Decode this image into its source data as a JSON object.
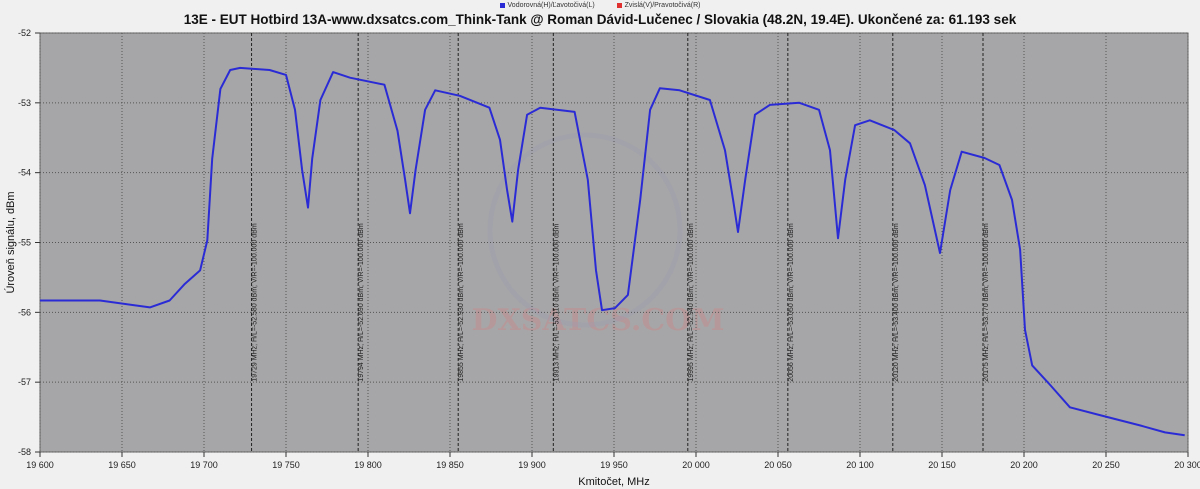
{
  "chart_data": {
    "type": "line",
    "title": "13E - EUT Hotbird 13A-www.dxsatcs.com_Think-Tank @ Roman Dávid-Lučenec / Slovakia (48.2N, 19.4E). Ukončené za: 61.193 sek",
    "xlabel": "Kmitočet, MHz",
    "ylabel": "Úroveň signálu, dBm",
    "xlim": [
      19600,
      20300
    ],
    "ylim": [
      -58,
      -52
    ],
    "x_ticks": [
      19600,
      19650,
      19700,
      19750,
      19800,
      19850,
      19900,
      19950,
      20000,
      20050,
      20100,
      20150,
      20200,
      20250,
      20300
    ],
    "x_tick_labels": [
      "19 600",
      "19 650",
      "19 700",
      "19 750",
      "19 800",
      "19 850",
      "19 900",
      "19 950",
      "20 000",
      "20 050",
      "20 100",
      "20 150",
      "20 200",
      "20 250",
      "20 300"
    ],
    "y_ticks": [
      -52,
      -53,
      -54,
      -55,
      -56,
      -57,
      -58
    ],
    "grid": true,
    "background": "#a6a6a8",
    "legend": {
      "placement": "top-center",
      "entries": [
        {
          "name": "Vodorovná(H)/Ľavotočivá(L)",
          "color": "#2b2bd6"
        },
        {
          "name": "Zvislá(V)/Pravotočivá(R)",
          "color": "#e03030"
        }
      ]
    },
    "series": [
      {
        "name": "Vodorovná(H)/Ľavotočivá(L)",
        "color": "#2b2bd6",
        "x": [
          19600,
          19636.6,
          19667,
          19679,
          19688,
          19697.6,
          19702,
          19705,
          19710,
          19716,
          19722,
          19740,
          19750,
          19755.5,
          19759.8,
          19763.4,
          19766,
          19771,
          19778.7,
          19789,
          19810,
          19818,
          19822.6,
          19825.6,
          19829,
          19834.8,
          19841,
          19856,
          19874,
          19880.5,
          19884.8,
          19888,
          19891.5,
          19897,
          19905,
          19926,
          19934,
          19939,
          19942.7,
          19950.6,
          19958.5,
          19966,
          19972,
          19978,
          19990,
          20008.5,
          20017.7,
          20022.6,
          20025.6,
          20030,
          20036,
          20045,
          20063,
          20075,
          20081.7,
          20086.6,
          20091,
          20097,
          20106,
          20121,
          20130.5,
          20139.6,
          20148.8,
          20155,
          20162,
          20176,
          20185,
          20192.7,
          20197.6,
          20200.6,
          20205,
          20216,
          20228,
          20246,
          20271,
          20286,
          20298
        ],
        "y": [
          -55.83,
          -55.83,
          -55.93,
          -55.83,
          -55.6,
          -55.4,
          -54.97,
          -53.8,
          -52.8,
          -52.53,
          -52.5,
          -52.53,
          -52.6,
          -53.1,
          -53.96,
          -54.5,
          -53.8,
          -52.96,
          -52.56,
          -52.64,
          -52.74,
          -53.4,
          -54.1,
          -54.58,
          -53.96,
          -53.1,
          -52.82,
          -52.9,
          -53.07,
          -53.53,
          -54.25,
          -54.7,
          -53.96,
          -53.17,
          -53.07,
          -53.13,
          -54.1,
          -55.4,
          -55.97,
          -55.94,
          -55.75,
          -54.39,
          -53.1,
          -52.79,
          -52.82,
          -52.96,
          -53.68,
          -54.39,
          -54.85,
          -54.1,
          -53.17,
          -53.03,
          -53.0,
          -53.1,
          -53.68,
          -54.94,
          -54.1,
          -53.32,
          -53.25,
          -53.39,
          -53.58,
          -54.18,
          -55.15,
          -54.25,
          -53.7,
          -53.79,
          -53.89,
          -54.39,
          -55.1,
          -56.25,
          -56.76,
          -57.04,
          -57.36,
          -57.47,
          -57.62,
          -57.72,
          -57.76
        ]
      }
    ],
    "markers": [
      {
        "freq": 19729,
        "label": "19729 MHz; H/L=-52.580 dBm; V/R=-100.000 dBm"
      },
      {
        "freq": 19794,
        "label": "19794 MHz; H/L=-52.690 dBm; V/R=-100.000 dBm"
      },
      {
        "freq": 19855,
        "label": "19855 MHz; H/L=-52.930 dBm; V/R=-100.000 dBm"
      },
      {
        "freq": 19913,
        "label": "19913 MHz; H/L=-53.110 dBm; V/R=-100.000 dBm"
      },
      {
        "freq": 19995,
        "label": "19995 MHz; H/L=-52.940 dBm; V/R=-100.000 dBm"
      },
      {
        "freq": 20056,
        "label": "20056 MHz; H/L=-53.050 dBm; V/R=-100.000 dBm"
      },
      {
        "freq": 20120,
        "label": "20120 MHz; H/L=-53.400 dBm; V/R=-100.000 dBm"
      },
      {
        "freq": 20175,
        "label": "20175 MHz; H/L=-53.770 dBm; V/R=-100.000 dBm"
      }
    ],
    "watermark": "DXSATCS.COM"
  }
}
